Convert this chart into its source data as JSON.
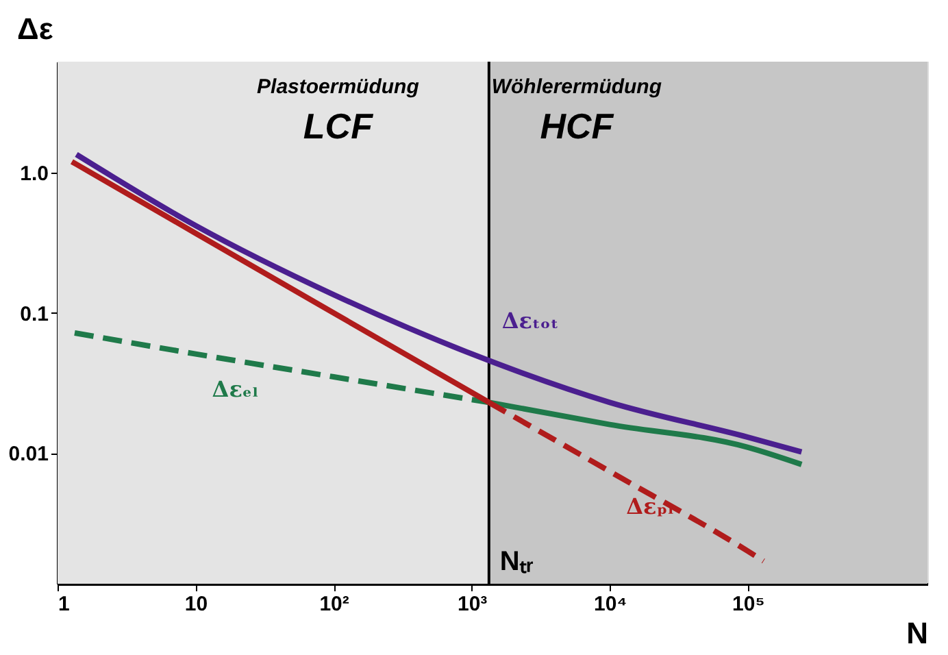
{
  "chart_data": {
    "type": "line",
    "xlabel": "N",
    "ylabel": "Δε",
    "xlim": [
      1,
      2000000
    ],
    "ylim": [
      0.00117,
      6.2
    ],
    "log": "xy",
    "marker": "none",
    "xticks": [
      1,
      10,
      {
        "value": 100,
        "label": "10²"
      },
      {
        "value": 1000,
        "label": "10³"
      },
      {
        "value": 10000,
        "label": "10⁴"
      },
      {
        "value": 100000,
        "label": "10⁵"
      }
    ],
    "yticks": [
      {
        "value": 1,
        "label": "1.0"
      },
      0.1,
      0.01
    ],
    "series": [
      {
        "name": "Δεₜₒₜ",
        "color": "#4b1f8f",
        "line_style": "solid",
        "x": [
          1.37,
          10,
          100,
          1000,
          10000,
          100000,
          245000
        ],
        "values": [
          1.35,
          0.42,
          0.135,
          0.051,
          0.023,
          0.013,
          0.0102
        ]
      },
      {
        "color": "#1f7a4a",
        "line_style": "solid",
        "x": [
          1333,
          10000,
          100000,
          245000
        ],
        "values": [
          0.023,
          0.016,
          0.011,
          0.0083
        ]
      },
      {
        "name": "Δεₑₗ",
        "color": "#1f7a4a",
        "line_style": "dashed",
        "x": [
          1.33,
          10,
          100,
          1333
        ],
        "values": [
          0.072,
          0.051,
          0.035,
          0.023
        ]
      },
      {
        "color": "#b01c1c",
        "line_style": "solid",
        "x": [
          1.27,
          10,
          100,
          1333
        ],
        "values": [
          1.2,
          0.37,
          0.1,
          0.023
        ]
      },
      {
        "name": "Δεₚₗ",
        "color": "#b01c1c",
        "line_style": "dashed",
        "x": [
          1333,
          10000,
          100000,
          130000
        ],
        "values": [
          0.023,
          0.0074,
          0.002,
          0.0017
        ]
      }
    ],
    "bands": [
      {
        "axis": "x",
        "from": 1,
        "to": 1333,
        "color": "#e4e4e4"
      },
      {
        "axis": "x",
        "from": 1333,
        "to": 2000000,
        "color": "#c6c6c6"
      }
    ],
    "ref_lines": [
      {
        "axis": "x",
        "value": 1333,
        "label": "Nₜᵣ",
        "color": "#000000",
        "line_style": "solid"
      }
    ],
    "annotations": [
      "Plastoermüdung",
      "LCF",
      "Wöhlerermüdung",
      "HCF"
    ]
  }
}
